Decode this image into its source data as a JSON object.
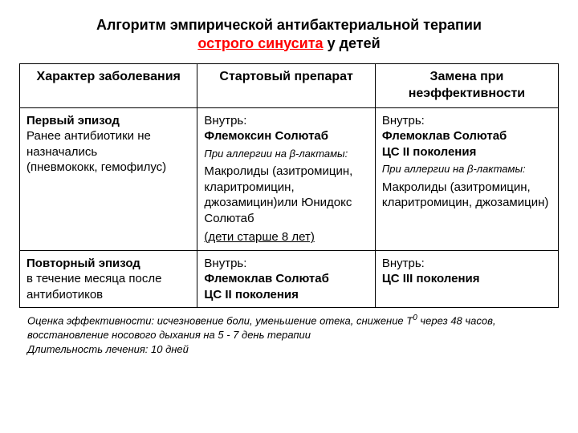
{
  "title": {
    "line1": "Алгоритм эмпирической антибактериальной терапии",
    "line2_prefix": "острого синусита",
    "line2_suffix": " у детей"
  },
  "headers": {
    "c1": "Характер заболевания",
    "c2": "Стартовый препарат",
    "c3": "Замена при неэффективности"
  },
  "row1": {
    "c1": {
      "l1": "Первый эпизод",
      "l2": "Ранее антибиотики не назначались",
      "l3": "(пневмококк, гемофилус)"
    },
    "c2": {
      "l1": "Внутрь:",
      "l2": "Флемоксин Солютаб",
      "l3": "При аллергии на β-лактамы:",
      "l4": "Макролиды (азитромицин, кларитромицин, джозамицин)или Юнидокс Солютаб",
      "l5": "(дети старше 8 лет)"
    },
    "c3": {
      "l1": "Внутрь:",
      "l2": "Флемоклав Солютаб",
      "l3": "ЦС II поколения",
      "l4": "При аллергии на β-лактамы:",
      "l5": "Макролиды (азитромицин, кларитромицин, джозамицин)"
    }
  },
  "row2": {
    "c1": {
      "l1": "Повторный эпизод",
      "l2": "в течение месяца после антибиотиков"
    },
    "c2": {
      "l1": "Внутрь:",
      "l2": "Флемоклав Солютаб",
      "l3": "ЦС II поколения"
    },
    "c3": {
      "l1": "Внутрь:",
      "l2": "ЦС III поколения"
    }
  },
  "foot": {
    "l1a": "Оценка эффективности: исчезновение боли, уменьшение отека, снижение Т",
    "l1sup": "0",
    "l1b": " через 48 часов, восстановление носового дыхания на 5 -  7 день терапии",
    "l2": "Длительность лечения: 10 дней"
  }
}
